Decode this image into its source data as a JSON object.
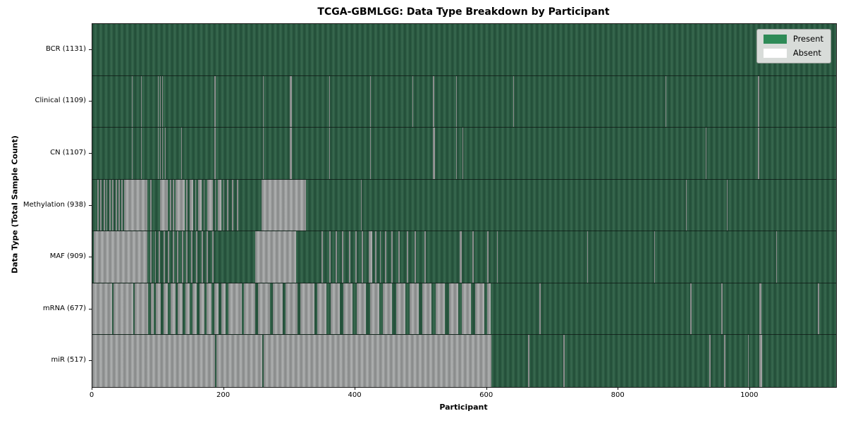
{
  "title": "TCGA-GBMLGG: Data Type Breakdown by Participant",
  "axes": {
    "x_label": "Participant",
    "y_label": "Data Type (Total Sample Count)"
  },
  "legend": {
    "items": [
      {
        "label": "Present",
        "color": "#2e8b57"
      },
      {
        "label": "Absent",
        "color": "#ffffff"
      }
    ]
  },
  "colors": {
    "present_fill": "#2e5f46",
    "absent_fill": "#9fa1a1",
    "legend_background": "#d8dcd9",
    "plot_border": "#1a1a1a"
  },
  "chart_data": {
    "type": "heatmap",
    "title": "TCGA-GBMLGG: Data Type Breakdown by Participant",
    "xlabel": "Participant",
    "ylabel": "Data Type (Total Sample Count)",
    "x_ticks": [
      0,
      200,
      400,
      600,
      800,
      1000
    ],
    "n_participants": 1131,
    "legend_position": "upper right",
    "value_encoding": "green bar = data present for participant, white/gray bar = absent",
    "rows": [
      {
        "data_type": "BCR",
        "label": "BCR (1131)",
        "present_count": 1131,
        "absent_segments": []
      },
      {
        "data_type": "Clinical",
        "label": "Clinical (1109)",
        "present_count": 1109,
        "absent_segments": [
          [
            60,
            61
          ],
          [
            74,
            75
          ],
          [
            100,
            101
          ],
          [
            103,
            104
          ],
          [
            106,
            107
          ],
          [
            185,
            188
          ],
          [
            259,
            260
          ],
          [
            300,
            303
          ],
          [
            360,
            361
          ],
          [
            422,
            423
          ],
          [
            487,
            488
          ],
          [
            518,
            520
          ],
          [
            553,
            554
          ],
          [
            640,
            641
          ],
          [
            872,
            873
          ],
          [
            1012,
            1014
          ]
        ]
      },
      {
        "data_type": "CN",
        "label": "CN (1107)",
        "present_count": 1107,
        "absent_segments": [
          [
            60,
            61
          ],
          [
            74,
            75
          ],
          [
            100,
            101
          ],
          [
            103,
            104
          ],
          [
            106,
            107
          ],
          [
            110,
            111
          ],
          [
            135,
            136
          ],
          [
            185,
            188
          ],
          [
            259,
            260
          ],
          [
            300,
            303
          ],
          [
            360,
            361
          ],
          [
            422,
            423
          ],
          [
            518,
            521
          ],
          [
            553,
            554
          ],
          [
            563,
            564
          ],
          [
            933,
            934
          ],
          [
            1012,
            1014
          ]
        ]
      },
      {
        "data_type": "Methylation",
        "label": "Methylation (938)",
        "present_count": 938,
        "absent_segments": [
          [
            8,
            10
          ],
          [
            12,
            14
          ],
          [
            17,
            19
          ],
          [
            21,
            23
          ],
          [
            26,
            28
          ],
          [
            30,
            32
          ],
          [
            35,
            37
          ],
          [
            40,
            42
          ],
          [
            44,
            46
          ],
          [
            48,
            84
          ],
          [
            88,
            90
          ],
          [
            103,
            115
          ],
          [
            118,
            120
          ],
          [
            122,
            124
          ],
          [
            127,
            140
          ],
          [
            143,
            145
          ],
          [
            148,
            153
          ],
          [
            156,
            158
          ],
          [
            161,
            166
          ],
          [
            169,
            171
          ],
          [
            175,
            183
          ],
          [
            186,
            188
          ],
          [
            191,
            196
          ],
          [
            199,
            201
          ],
          [
            205,
            207
          ],
          [
            212,
            214
          ],
          [
            220,
            222
          ],
          [
            257,
            325
          ],
          [
            408,
            409
          ],
          [
            903,
            904
          ],
          [
            965,
            966
          ]
        ]
      },
      {
        "data_type": "MAF",
        "label": "MAF (909)",
        "present_count": 909,
        "absent_segments": [
          [
            2,
            84
          ],
          [
            88,
            90
          ],
          [
            95,
            97
          ],
          [
            101,
            103
          ],
          [
            108,
            110
          ],
          [
            115,
            117
          ],
          [
            122,
            124
          ],
          [
            129,
            131
          ],
          [
            136,
            138
          ],
          [
            143,
            145
          ],
          [
            150,
            152
          ],
          [
            158,
            160
          ],
          [
            166,
            168
          ],
          [
            174,
            176
          ],
          [
            182,
            184
          ],
          [
            248,
            310
          ],
          [
            348,
            351
          ],
          [
            360,
            362
          ],
          [
            370,
            372
          ],
          [
            380,
            382
          ],
          [
            390,
            392
          ],
          [
            400,
            402
          ],
          [
            410,
            412
          ],
          [
            420,
            426
          ],
          [
            430,
            432
          ],
          [
            437,
            439
          ],
          [
            445,
            447
          ],
          [
            455,
            457
          ],
          [
            465,
            467
          ],
          [
            478,
            480
          ],
          [
            490,
            492
          ],
          [
            505,
            507
          ],
          [
            558,
            562
          ],
          [
            578,
            580
          ],
          [
            600,
            602
          ],
          [
            615,
            616
          ],
          [
            753,
            754
          ],
          [
            854,
            855
          ],
          [
            1040,
            1041
          ]
        ]
      },
      {
        "data_type": "mRNA",
        "label": "mRNA (677)",
        "present_count": 677,
        "absent_segments": [
          [
            0,
            30
          ],
          [
            32,
            62
          ],
          [
            64,
            85
          ],
          [
            89,
            93
          ],
          [
            97,
            104
          ],
          [
            108,
            115
          ],
          [
            119,
            126
          ],
          [
            130,
            137
          ],
          [
            141,
            148
          ],
          [
            152,
            159
          ],
          [
            163,
            170
          ],
          [
            174,
            181
          ],
          [
            185,
            192
          ],
          [
            196,
            203
          ],
          [
            207,
            227
          ],
          [
            230,
            248
          ],
          [
            252,
            270
          ],
          [
            274,
            290
          ],
          [
            294,
            312
          ],
          [
            316,
            338
          ],
          [
            342,
            356
          ],
          [
            362,
            376
          ],
          [
            382,
            396
          ],
          [
            402,
            416
          ],
          [
            422,
            436
          ],
          [
            442,
            456
          ],
          [
            462,
            476
          ],
          [
            482,
            496
          ],
          [
            502,
            516
          ],
          [
            522,
            536
          ],
          [
            542,
            556
          ],
          [
            562,
            576
          ],
          [
            582,
            596
          ],
          [
            600,
            606
          ],
          [
            680,
            682
          ],
          [
            909,
            911
          ],
          [
            956,
            958
          ],
          [
            1014,
            1017
          ],
          [
            1103,
            1105
          ]
        ]
      },
      {
        "data_type": "miR",
        "label": "miR (517)",
        "present_count": 517,
        "absent_segments": [
          [
            0,
            187
          ],
          [
            189,
            258
          ],
          [
            260,
            607
          ],
          [
            663,
            665
          ],
          [
            716,
            718
          ],
          [
            938,
            940
          ],
          [
            961,
            963
          ],
          [
            997,
            998
          ],
          [
            1014,
            1018
          ]
        ]
      }
    ]
  }
}
